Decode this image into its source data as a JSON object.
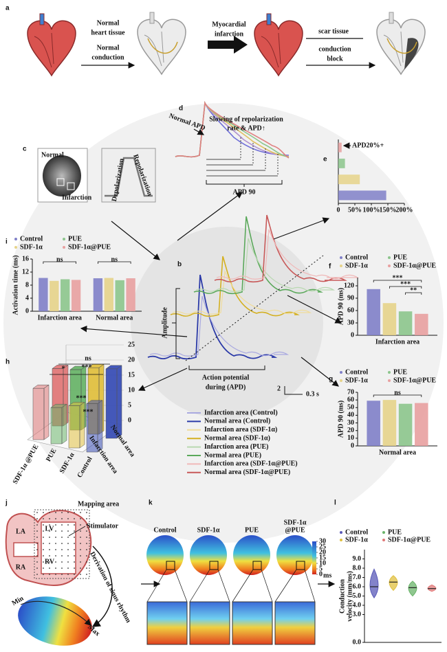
{
  "a": {
    "label": "a",
    "normal_tissue": [
      "Normal",
      "heart tissue"
    ],
    "normal_conduction": [
      "Normal",
      "conduction"
    ],
    "mi": [
      "Myocardial",
      "infarction"
    ],
    "scar": "scar tissue",
    "block": [
      "conduction",
      "block"
    ]
  },
  "b": {
    "label": "b",
    "amplitude": "Amplitude",
    "apd": [
      "Action potential",
      "during (APD)"
    ],
    "scale_y": "2",
    "scale_x": "0.3 s",
    "legend": [
      {
        "name": "Infarction area (Control)",
        "color": "#a9a9e0"
      },
      {
        "name": "Normal area (Control)",
        "color": "#2b3aa8"
      },
      {
        "name": "Infarction area (SDF-1α)",
        "color": "#f0dc9a"
      },
      {
        "name": "Normal area (SDF-1α)",
        "color": "#d4b020"
      },
      {
        "name": "Infarction area (PUE)",
        "color": "#b8d8b0"
      },
      {
        "name": "Normal area (PUE)",
        "color": "#5aa85a"
      },
      {
        "name": "Infarction area (SDF-1α@PUE)",
        "color": "#f0b8b8"
      },
      {
        "name": "Normal area (SDF-1α@PUE)",
        "color": "#c85858"
      }
    ]
  },
  "c": {
    "label": "c",
    "normal": "Normal",
    "infarction": "Infarction",
    "depol": "Depolarization",
    "repol": "Repolarization"
  },
  "d": {
    "label": "d",
    "normal_apd": "Normal APD",
    "slowing": [
      "Slowing of repolarization",
      "rate & APD↑"
    ],
    "apd90": "APD 90"
  },
  "e": {
    "label": "e",
    "annotation": "APD20%+",
    "chart": {
      "type": "barh",
      "values": [
        10,
        20,
        65,
        145
      ],
      "colors": [
        "#e8a0a0",
        "#8cc58c",
        "#e6d38a",
        "#8080c8"
      ],
      "xlim": [
        0,
        200
      ],
      "xticks": [
        0,
        {
          "value": 50,
          "label": "50%"
        },
        {
          "value": 100,
          "label": "100%"
        },
        {
          "value": 150,
          "label": "150%"
        },
        {
          "value": 200,
          "label": "200%"
        }
      ]
    }
  },
  "f": {
    "label": "f",
    "chart": {
      "type": "bar",
      "ylabel": "APD 90 (ms)",
      "categories": [
        "Infarction area"
      ],
      "ylim": [
        0,
        140
      ],
      "yticks": [
        0,
        30,
        60,
        90,
        120
      ],
      "series": [
        {
          "name": "Control",
          "color": "#8080c8",
          "values": [
            112
          ]
        },
        {
          "name": "SDF-1α",
          "color": "#e6d38a",
          "values": [
            78
          ]
        },
        {
          "name": "PUE",
          "color": "#8cc58c",
          "values": [
            58
          ]
        },
        {
          "name": "SDF-1α@PUE",
          "color": "#e8a0a0",
          "values": [
            52
          ]
        }
      ],
      "annotations": [
        "***",
        "***",
        "**"
      ]
    }
  },
  "g": {
    "label": "g",
    "chart": {
      "type": "bar",
      "ylabel": "APD 90 (ms)",
      "categories": [
        "Normal area"
      ],
      "ylim": [
        0,
        70
      ],
      "yticks": [
        0,
        10,
        20,
        30,
        40,
        50,
        60,
        70
      ],
      "series": [
        {
          "name": "Control",
          "color": "#8080c8",
          "values": [
            59
          ]
        },
        {
          "name": "SDF-1α",
          "color": "#e6d38a",
          "values": [
            60
          ]
        },
        {
          "name": "PUE",
          "color": "#8cc58c",
          "values": [
            55
          ]
        },
        {
          "name": "SDF-1α@PUE",
          "color": "#e8a0a0",
          "values": [
            56
          ]
        }
      ],
      "annotations": [
        "ns"
      ]
    }
  },
  "i": {
    "label": "i",
    "chart": {
      "type": "bar",
      "ylabel": "Activation time (ms)",
      "categories": [
        "Infarction area",
        "Normal area"
      ],
      "ylim": [
        0,
        16
      ],
      "yticks": [
        0,
        4,
        8,
        12,
        16
      ],
      "series": [
        {
          "name": "Control",
          "color": "#8080c8",
          "values": [
            10.2,
            10.1
          ]
        },
        {
          "name": "SDF-1α",
          "color": "#e6d38a",
          "values": [
            9.3,
            10.2
          ]
        },
        {
          "name": "PUE",
          "color": "#8cc58c",
          "values": [
            9.8,
            9.5
          ]
        },
        {
          "name": "SDF-1α@PUE",
          "color": "#e8a0a0",
          "values": [
            9.6,
            10.1
          ]
        }
      ],
      "annotations": [
        "ns",
        "ns"
      ]
    }
  },
  "h": {
    "label": "h",
    "chart": {
      "type": "bar3d",
      "categories": [
        "Control",
        "SDF-1α",
        "PUE",
        "SDF-1α @PUE"
      ],
      "colors": [
        "#3a4fb5",
        "#e0c040",
        "#6ab46a",
        "#e07878"
      ],
      "rows": [
        "Infarction area",
        "Normal area"
      ],
      "values": [
        [
          16,
          14,
          12,
          17
        ],
        [
          23,
          22,
          20,
          19
        ]
      ],
      "zlim": [
        0,
        25
      ],
      "zticks": [
        0,
        5,
        10,
        15,
        20,
        25
      ],
      "annotations": [
        "ns",
        "*",
        "***",
        "***",
        "***"
      ]
    }
  },
  "j": {
    "label": "j",
    "mapping": "Mapping area",
    "la": "LA",
    "lv": "LV",
    "ra": "RA",
    "rv": "RV",
    "stimulator": "Stimulator",
    "derivation": "Derivation of sinus rhythm",
    "min": "Min",
    "max": "Max"
  },
  "k": {
    "label": "k",
    "titles": [
      [
        "Control"
      ],
      [
        "SDF-1α"
      ],
      [
        "PUE"
      ],
      [
        "SDF-1α",
        "@PUE"
      ]
    ],
    "clim": [
      0,
      30
    ],
    "cticks": [
      30,
      25,
      20,
      15,
      10,
      5,
      0
    ],
    "cunit": "ms"
  },
  "l": {
    "label": "l",
    "chart": {
      "type": "violin",
      "ylabel": [
        "Conduction",
        "velocity (mm/ms)"
      ],
      "names": [
        "Control",
        "SDF-1α",
        "PUE",
        "SDF-1α@PUE"
      ],
      "colors": [
        "#5a5ab8",
        "#e0c040",
        "#6ab46a",
        "#e07878"
      ],
      "medians": [
        6.0,
        6.5,
        5.9,
        5.8
      ],
      "mins": [
        4.8,
        5.6,
        5.0,
        5.5
      ],
      "maxs": [
        7.9,
        7.2,
        6.6,
        6.2
      ],
      "ylim": [
        0,
        10
      ],
      "yticks": [
        {
          "value": 0,
          "label": "0.0"
        },
        {
          "value": 3,
          "label": "3.0"
        },
        {
          "value": 4,
          "label": "4.0"
        },
        {
          "value": 5,
          "label": "5.0"
        },
        {
          "value": 6,
          "label": "6.0"
        },
        {
          "value": 7,
          "label": "7.0"
        },
        {
          "value": 8,
          "label": "8.0"
        },
        {
          "value": 9,
          "label": "9.0"
        }
      ]
    }
  }
}
